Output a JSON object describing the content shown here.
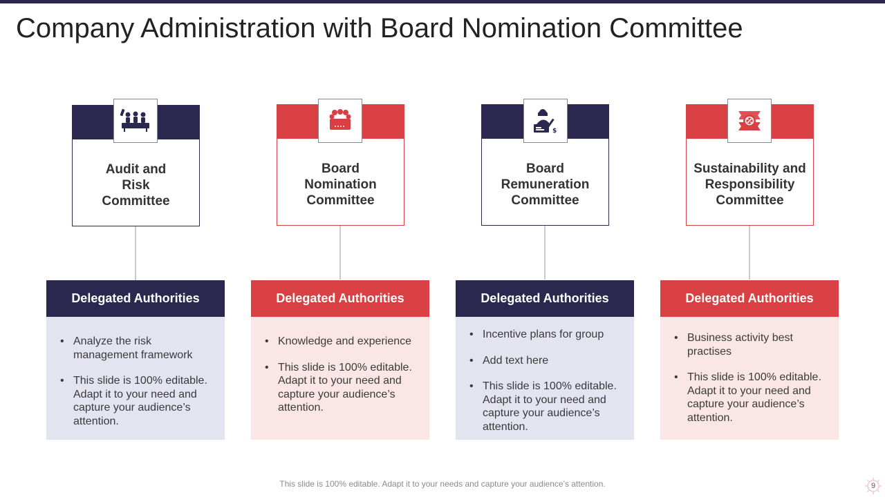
{
  "slide": {
    "title": "Company Administration with Board Nomination Committee",
    "footer": "This slide is 100% editable. Adapt it to your needs and capture your audience’s attention.",
    "page_number": "9"
  },
  "colors": {
    "navy": "#2b2850",
    "red": "#d94043",
    "navy_light": "#e4e3f0",
    "red_light": "#fbe6e6"
  },
  "cards": [
    {
      "name": "Audit and Risk Committee",
      "lines": [
        "Audit and",
        "Risk",
        "Committee"
      ],
      "icon": "meeting-icon",
      "theme": "navy",
      "authority_title": "Delegated Authorities",
      "bullets": [
        "Analyze the risk management framework",
        "This slide is 100% editable. Adapt it to your need and capture your audience’s attention."
      ]
    },
    {
      "name": "Board Nomination Committee",
      "lines": [
        "Board",
        "Nomination",
        "Committee"
      ],
      "icon": "board-group-icon",
      "theme": "red",
      "authority_title": "Delegated Authorities",
      "bullets": [
        "Knowledge and experience",
        "This slide is 100% editable. Adapt it to your need and capture your audience’s attention."
      ]
    },
    {
      "name": "Board Remuneration Committee",
      "lines": [
        "Board",
        "Remuneration",
        "Committee"
      ],
      "icon": "signing-icon",
      "theme": "navy",
      "authority_title": "Delegated Authorities",
      "bullets": [
        "Incentive plans for group",
        "Add text here",
        "This slide is 100% editable. Adapt it to your need and capture your audience’s attention."
      ]
    },
    {
      "name": "Sustainability and Responsibility Committee",
      "lines": [
        "Sustainability and",
        "Responsibility",
        "Committee"
      ],
      "icon": "sustainability-icon",
      "theme": "red",
      "authority_title": "Delegated Authorities",
      "bullets": [
        "Business activity best practises",
        "This slide is 100% editable. Adapt it to your need and capture your audience’s attention."
      ]
    }
  ]
}
